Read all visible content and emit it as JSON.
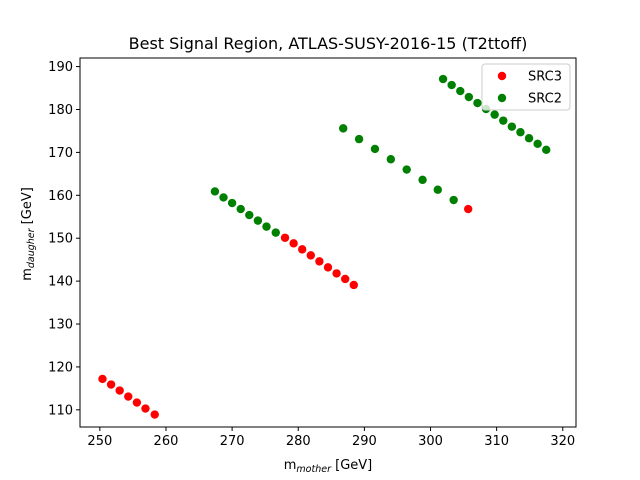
{
  "chart_data": {
    "type": "scatter",
    "title": "Best Signal Region, ATLAS-SUSY-2016-15 (T2ttoff)",
    "xlabel": {
      "main": "m",
      "sub": "mother",
      "unit": " [GeV]"
    },
    "ylabel": {
      "main": "m",
      "sub": "daugher",
      "unit": " [GeV]"
    },
    "xlim": [
      247,
      322
    ],
    "ylim": [
      106,
      192
    ],
    "xticks": [
      250,
      260,
      270,
      280,
      290,
      300,
      310,
      320
    ],
    "yticks": [
      110,
      120,
      130,
      140,
      150,
      160,
      170,
      180,
      190
    ],
    "legend_position": "top-right",
    "grid": false,
    "series": [
      {
        "name": "SRC3",
        "color": "#ff0000",
        "points": [
          [
            250.4,
            117.2
          ],
          [
            251.7,
            115.9
          ],
          [
            253.0,
            114.5
          ],
          [
            254.3,
            113.1
          ],
          [
            255.6,
            111.7
          ],
          [
            256.9,
            110.3
          ],
          [
            258.3,
            108.9
          ],
          [
            278.0,
            150.1
          ],
          [
            279.3,
            148.8
          ],
          [
            280.6,
            147.4
          ],
          [
            281.9,
            146.0
          ],
          [
            283.2,
            144.6
          ],
          [
            284.5,
            143.2
          ],
          [
            285.8,
            141.8
          ],
          [
            287.1,
            140.5
          ],
          [
            288.4,
            139.1
          ],
          [
            305.7,
            156.8
          ]
        ]
      },
      {
        "name": "SRC2",
        "color": "#008000",
        "points": [
          [
            267.4,
            160.9
          ],
          [
            268.7,
            159.5
          ],
          [
            270.0,
            158.2
          ],
          [
            271.3,
            156.8
          ],
          [
            272.6,
            155.4
          ],
          [
            273.9,
            154.1
          ],
          [
            275.2,
            152.7
          ],
          [
            276.6,
            151.3
          ],
          [
            286.8,
            175.6
          ],
          [
            289.2,
            173.1
          ],
          [
            291.6,
            170.8
          ],
          [
            294.0,
            168.4
          ],
          [
            296.4,
            166.0
          ],
          [
            298.8,
            163.6
          ],
          [
            301.1,
            161.3
          ],
          [
            303.5,
            158.9
          ],
          [
            301.9,
            187.1
          ],
          [
            303.2,
            185.7
          ],
          [
            304.5,
            184.3
          ],
          [
            305.8,
            182.9
          ],
          [
            307.1,
            181.5
          ],
          [
            308.4,
            180.1
          ],
          [
            309.7,
            178.8
          ],
          [
            311.0,
            177.4
          ],
          [
            312.3,
            176.0
          ],
          [
            313.6,
            174.7
          ],
          [
            314.9,
            173.3
          ],
          [
            316.2,
            172.0
          ],
          [
            317.5,
            170.6
          ]
        ]
      }
    ]
  }
}
